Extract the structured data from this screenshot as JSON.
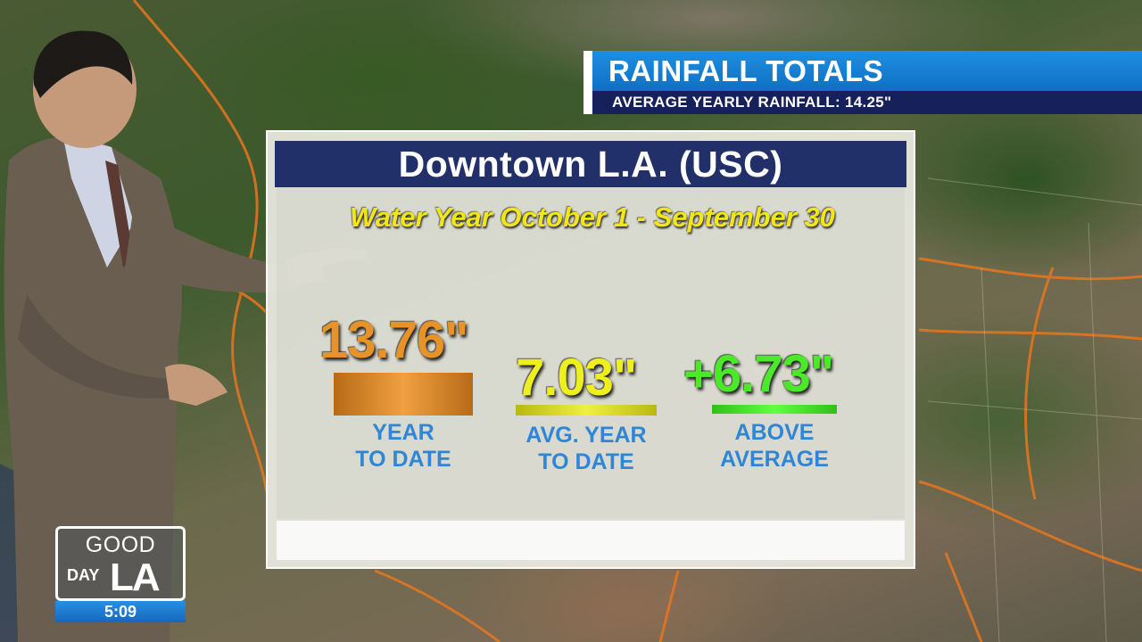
{
  "banner": {
    "title": "RAINFALL TOTALS",
    "subtitle": "AVERAGE YEARLY RAINFALL: 14.25\""
  },
  "panel": {
    "header": "Downtown L.A. (USC)",
    "subtitle": "Water Year October 1 - September 30",
    "stats": [
      {
        "value": "13.76\"",
        "label_line1": "YEAR",
        "label_line2": "TO DATE",
        "color": "#e8922a"
      },
      {
        "value": "7.03\"",
        "label_line1": "AVG. YEAR",
        "label_line2": "TO DATE",
        "color": "#eef01e"
      },
      {
        "value": "+6.73\"",
        "label_line1": "ABOVE",
        "label_line2": "AVERAGE",
        "color": "#4ce82a"
      }
    ]
  },
  "logo": {
    "good": "GOOD",
    "day": "DAY",
    "la": "LA",
    "time": "5:09"
  },
  "colors": {
    "banner_blue": "#1f8fe0",
    "banner_navy": "#16205a",
    "header_navy": "#22306a",
    "label_blue": "#2f86d6",
    "subtitle_yellow": "#f2e61a"
  }
}
